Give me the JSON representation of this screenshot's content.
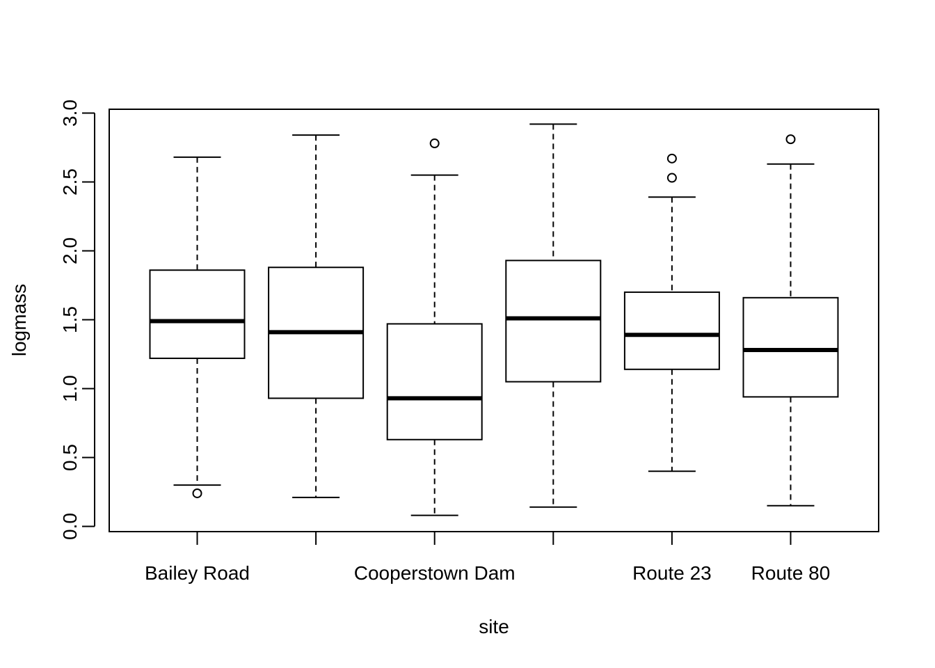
{
  "chart_data": {
    "type": "box",
    "title": "",
    "xlabel": "site",
    "ylabel": "logmass",
    "ylim": [
      0.0,
      3.0
    ],
    "yticks": [
      "0.0",
      "0.5",
      "1.0",
      "1.5",
      "2.0",
      "2.5",
      "3.0"
    ],
    "grid": false,
    "categories": [
      "Bailey Road",
      "",
      "Cooperstown Dam",
      "",
      "Route 23",
      "Route 80"
    ],
    "boxes": [
      {
        "min": 0.3,
        "q1": 1.22,
        "median": 1.49,
        "q3": 1.86,
        "max": 2.68,
        "outliers": [
          0.24
        ]
      },
      {
        "min": 0.21,
        "q1": 0.93,
        "median": 1.41,
        "q3": 1.88,
        "max": 2.84,
        "outliers": []
      },
      {
        "min": 0.08,
        "q1": 0.63,
        "median": 0.93,
        "q3": 1.47,
        "max": 2.55,
        "outliers": [
          2.78
        ]
      },
      {
        "min": 0.14,
        "q1": 1.05,
        "median": 1.51,
        "q3": 1.93,
        "max": 2.92,
        "outliers": []
      },
      {
        "min": 0.4,
        "q1": 1.14,
        "median": 1.39,
        "q3": 1.7,
        "max": 2.39,
        "outliers": [
          2.67,
          2.53
        ]
      },
      {
        "min": 0.15,
        "q1": 0.94,
        "median": 1.28,
        "q3": 1.66,
        "max": 2.63,
        "outliers": [
          2.81
        ]
      }
    ]
  }
}
